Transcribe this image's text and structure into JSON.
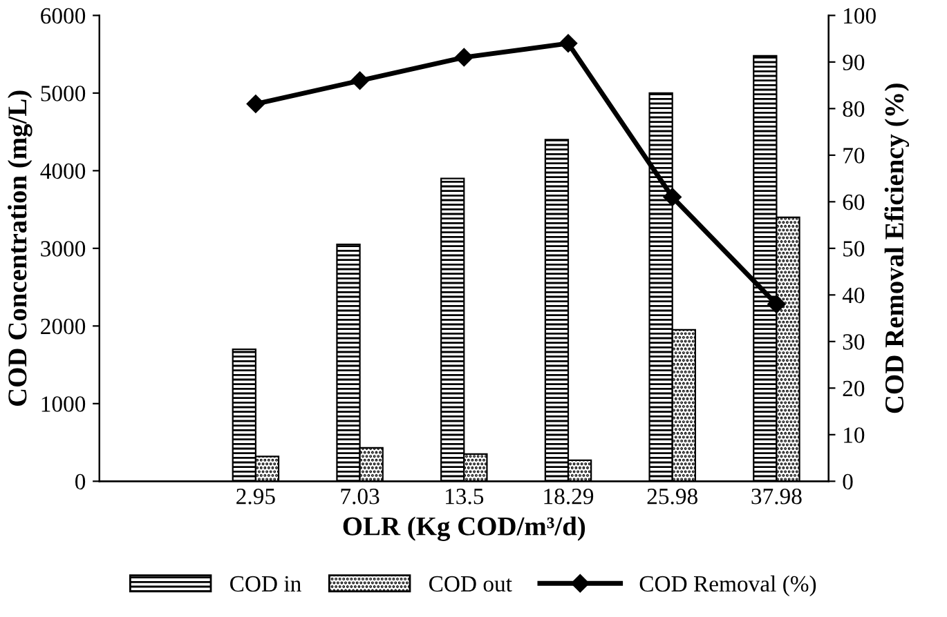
{
  "chart_data": {
    "type": "bar",
    "xlabel": "OLR (Kg COD/m³/d)",
    "ylabel": "COD Concentration (mg/L)",
    "y2label": "COD Removal Eficiency (%)",
    "categories": [
      null,
      "2.95",
      "7.03",
      "13.5",
      "18.29",
      "25.98",
      "37.98"
    ],
    "series": [
      {
        "name": "COD in",
        "color": "#000000",
        "values": [
          null,
          1700,
          3050,
          3900,
          4400,
          5000,
          5480
        ]
      },
      {
        "name": "COD out",
        "color": "#000000",
        "values": [
          null,
          320,
          430,
          350,
          270,
          1950,
          3400
        ]
      },
      {
        "name": "COD Removal (%)",
        "type": "line",
        "axis": "y2",
        "color": "#000000",
        "marker": "diamond",
        "values": [
          null,
          81,
          86,
          91,
          94,
          61,
          38
        ]
      }
    ],
    "ylim": [
      0,
      6000
    ],
    "yticks": [
      0,
      1000,
      2000,
      3000,
      4000,
      5000,
      6000
    ],
    "y2lim": [
      0,
      100
    ],
    "y2ticks": [
      0,
      10,
      20,
      30,
      40,
      50,
      60,
      70,
      80,
      90,
      100
    ],
    "grid": false,
    "legend": "bottom"
  }
}
